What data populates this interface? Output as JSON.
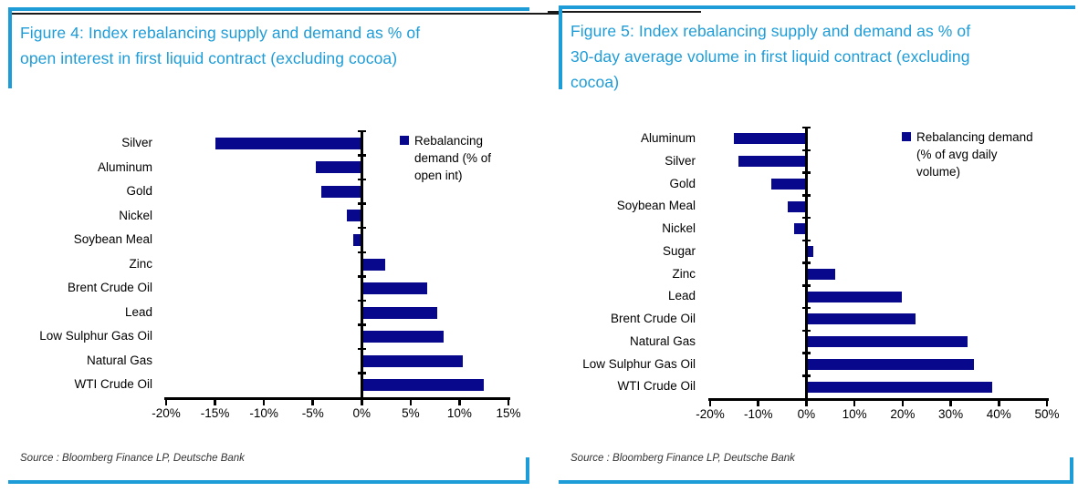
{
  "colors": {
    "accent_blue": "#1E9CD7",
    "bar_navy": "#08088C",
    "rule_black": "#1a1a1a",
    "source_text": "#333333"
  },
  "figures": [
    {
      "title": "Figure 4: Index rebalancing supply and demand as % of open interest in first liquid contract (excluding cocoa)",
      "title_lines": [
        "Figure 4: Index rebalancing supply and demand as % of",
        "open interest in first liquid contract (excluding cocoa)"
      ],
      "legend_lines": [
        "Rebalancing",
        "demand (% of",
        "open int)"
      ],
      "source": "Source : Bloomberg Finance LP, Deutsche Bank"
    },
    {
      "title": "Figure 5: Index rebalancing supply and demand as % of 30-day average volume in first liquid contract (excluding cocoa)",
      "title_lines": [
        "Figure 5: Index rebalancing supply and demand as % of",
        "30-day average volume in first liquid contract (excluding",
        "cocoa)"
      ],
      "legend_lines": [
        "Rebalancing demand",
        "(% of avg daily",
        "volume)"
      ],
      "source": "Source : Bloomberg Finance LP, Deutsche Bank"
    }
  ],
  "chart_data": [
    {
      "type": "bar",
      "orientation": "horizontal",
      "title": "Figure 4: Index rebalancing supply and demand as % of open interest in first liquid contract (excluding cocoa)",
      "legend": "Rebalancing demand (% of open int)",
      "legend_position": "top-right",
      "grid": false,
      "categories": [
        "Silver",
        "Aluminum",
        "Gold",
        "Nickel",
        "Soybean Meal",
        "Zinc",
        "Brent Crude Oil",
        "Lead",
        "Low Sulphur Gas Oil",
        "Natural Gas",
        "WTI Crude Oil"
      ],
      "values": [
        -15.0,
        -4.7,
        -4.1,
        -1.5,
        -0.9,
        2.4,
        6.7,
        7.7,
        8.4,
        10.3,
        12.5
      ],
      "xlim": [
        -20,
        15
      ],
      "xtick_values": [
        -20,
        -15,
        -10,
        -5,
        0,
        5,
        10,
        15
      ],
      "xtick_labels": [
        "-20%",
        "-15%",
        "-10%",
        "-5%",
        "0%",
        "5%",
        "10%",
        "15%"
      ]
    },
    {
      "type": "bar",
      "orientation": "horizontal",
      "title": "Figure 5: Index rebalancing supply and demand as % of 30-day average volume in first liquid contract (excluding cocoa)",
      "legend": "Rebalancing demand (% of avg daily volume)",
      "legend_position": "top-right",
      "grid": false,
      "categories": [
        "Aluminum",
        "Silver",
        "Gold",
        "Soybean Meal",
        "Nickel",
        "Sugar",
        "Zinc",
        "Lead",
        "Brent Crude Oil",
        "Natural Gas",
        "Low Sulphur Gas Oil",
        "WTI Crude Oil"
      ],
      "values": [
        -15.1,
        -14.1,
        -7.2,
        -3.9,
        -2.6,
        1.5,
        5.9,
        19.8,
        22.6,
        33.5,
        34.8,
        38.7
      ],
      "xlim": [
        -20,
        50
      ],
      "xtick_values": [
        -20,
        -10,
        0,
        10,
        20,
        30,
        40,
        50
      ],
      "xtick_labels": [
        "-20%",
        "-10%",
        "0%",
        "10%",
        "20%",
        "30%",
        "40%",
        "50%"
      ]
    }
  ]
}
